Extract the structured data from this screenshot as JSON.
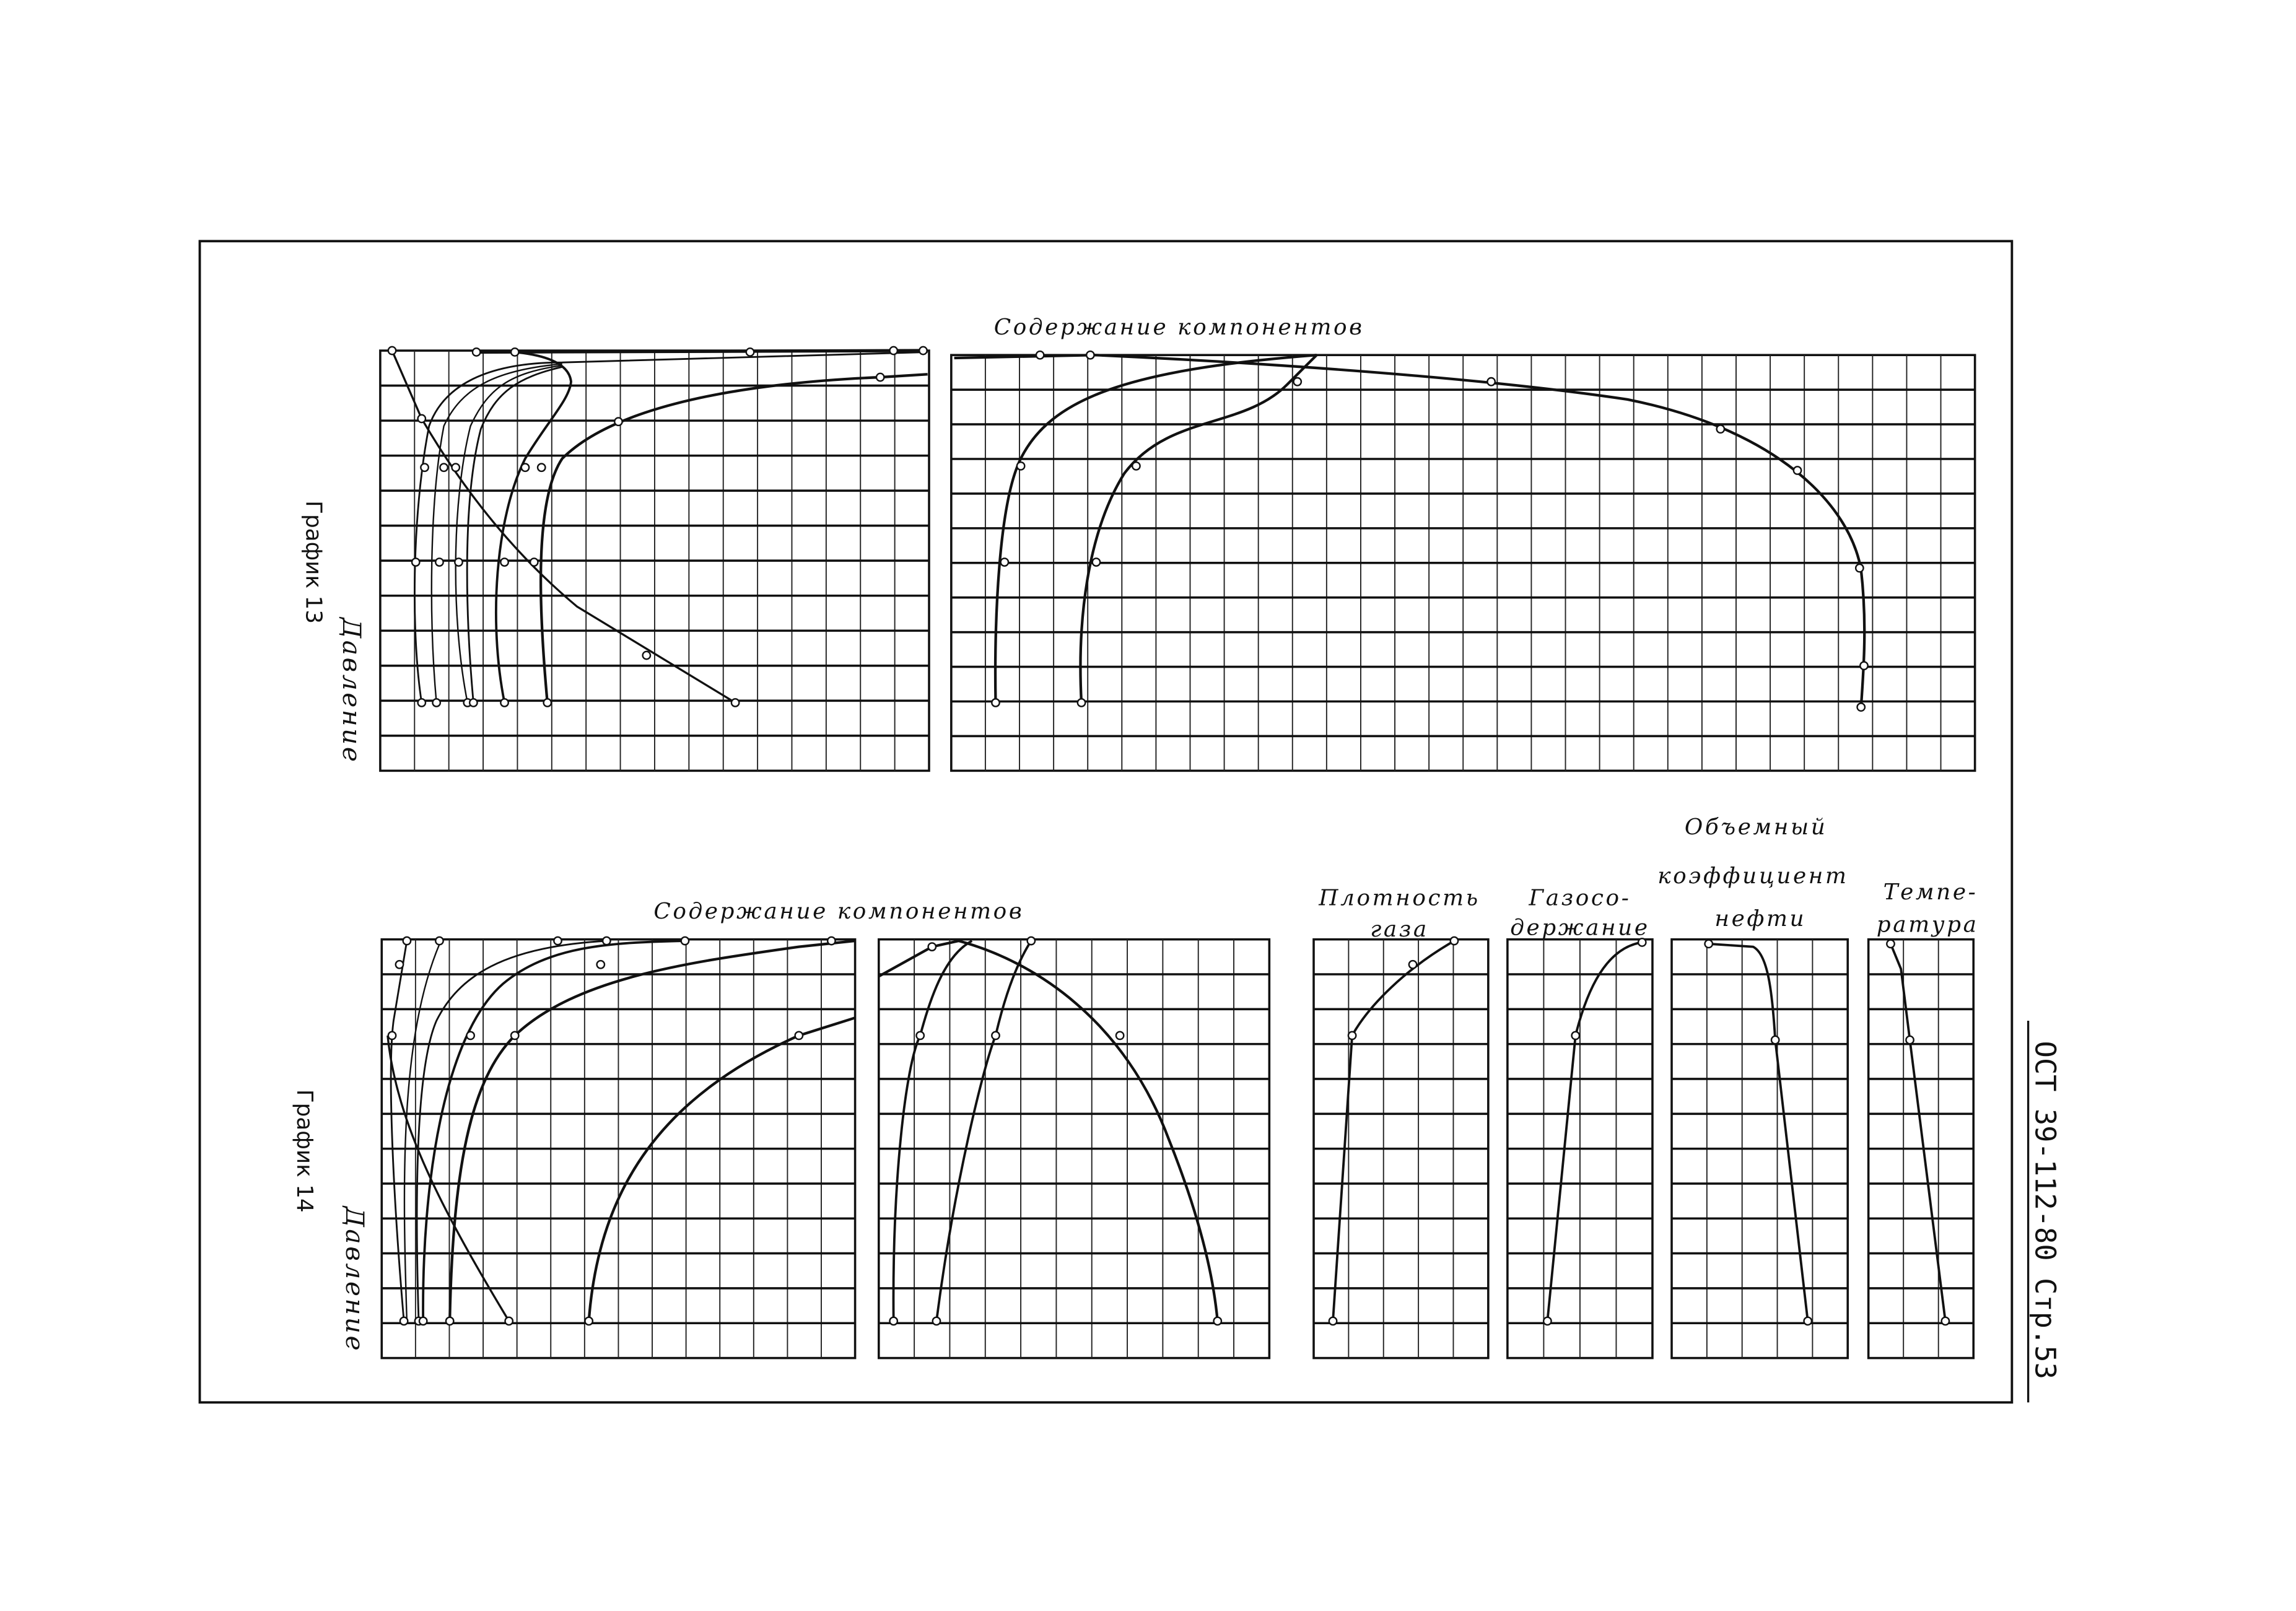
{
  "graph13": {
    "title": "График 13",
    "y_label": "Давление",
    "header": "Содержание компонентов"
  },
  "graph14": {
    "title": "График 14",
    "y_label": "Давление",
    "header": "Содержание компонентов",
    "panels": {
      "gas_density": [
        "Плотность",
        "газа"
      ],
      "gas_content": [
        "Газосо-",
        "держание"
      ],
      "oil_volume_factor": [
        "Объемный",
        "коэффициент",
        "нефти"
      ],
      "temperature": [
        "Темпе-",
        "ратура"
      ]
    }
  },
  "document_code": "ОСТ 39-112-80 Стр.53",
  "colors": {
    "ink": "#111111",
    "paper": "#ffffff"
  }
}
